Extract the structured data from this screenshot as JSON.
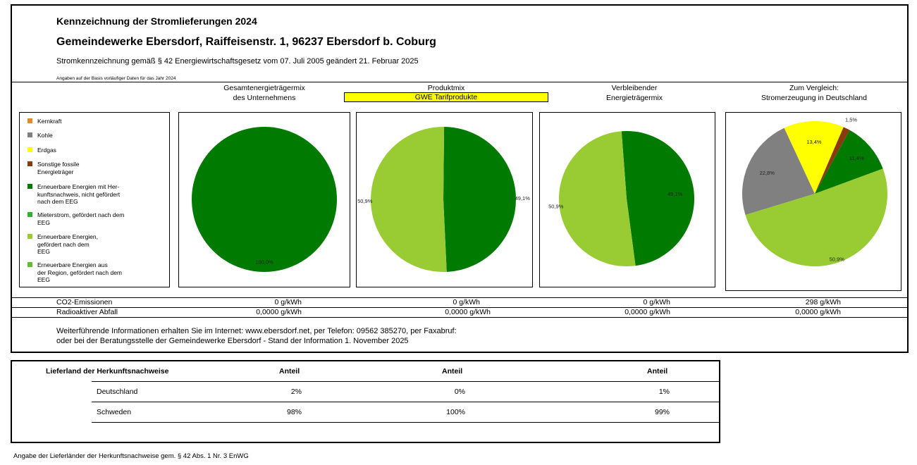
{
  "header": {
    "title": "Kennzeichnung der Stromlieferungen 2024",
    "company": "Gemeindewerke Ebersdorf, Raiffeisenstr. 1, 96237 Ebersdorf b. Coburg",
    "legal": "Stromkennzeichnung gemäß § 42 Energiewirtschaftsgesetz vom 07. Juli 2005 geändert 21. Februar 2025",
    "note": "Angaben auf der Basis vorläufiger Daten für das Jahr 2024"
  },
  "columns": {
    "c1": "Gesamtenergieträgermix\ndes Unternehmens",
    "c2": "Produktmix",
    "c2_sub": "GWE Tarifprodukte",
    "c3": "Verbleibender\nEnergieträgermix",
    "c4": "Zum Vergleich:\nStromerzeugung in Deutschland"
  },
  "legend": [
    {
      "label": "Kernkraft",
      "color": "#e08a2a"
    },
    {
      "label": "Kohle",
      "color": "#808080"
    },
    {
      "label": "Erdgas",
      "color": "#ffff00"
    },
    {
      "label": "Sonstige fossile\nEnergieträger",
      "color": "#8b3a10"
    },
    {
      "label": "Erneuerbare Energien mit Her-\nkunftsnachweis, nicht gefördert\nnach dem EEG",
      "color": "#007a00"
    },
    {
      "label": "Mieterstrom, gefördert nach dem\nEEG",
      "color": "#2db52d"
    },
    {
      "label": "Erneuerbare Energien,\ngefördert nach dem\nEEG",
      "color": "#99cc33"
    },
    {
      "label": "Erneuerbare Energien aus\nder Region, gefördert nach dem\nEEG",
      "color": "#66bb33"
    }
  ],
  "chart_data": [
    {
      "type": "pie",
      "name": "Gesamtenergieträgermix des Unternehmens",
      "slices": [
        {
          "label": "Erneuerbare Energien mit Herkunftsnachweis, nicht gefördert nach dem EEG",
          "value": 100.0,
          "text": "100,0%",
          "color": "#007a00"
        }
      ]
    },
    {
      "type": "pie",
      "name": "Produktmix",
      "slices": [
        {
          "label": "Erneuerbare Energien mit Herkunftsnachweis, nicht gefördert nach dem EEG",
          "value": 49.1,
          "text": "49,1%",
          "color": "#007a00"
        },
        {
          "label": "Erneuerbare Energien, gefördert nach dem EEG",
          "value": 50.9,
          "text": "50,9%",
          "color": "#99cc33"
        }
      ]
    },
    {
      "type": "pie",
      "name": "Verbleibender Energieträgermix",
      "slices": [
        {
          "label": "Erneuerbare Energien mit Herkunftsnachweis, nicht gefördert nach dem EEG",
          "value": 49.1,
          "text": "49,1%",
          "color": "#007a00"
        },
        {
          "label": "Erneuerbare Energien, gefördert nach dem EEG",
          "value": 50.9,
          "text": "50,9%",
          "color": "#99cc33"
        }
      ]
    },
    {
      "type": "pie",
      "name": "Stromerzeugung in Deutschland",
      "slices": [
        {
          "label": "Kohle",
          "value": 22.8,
          "text": "22,8%",
          "color": "#808080"
        },
        {
          "label": "Erdgas",
          "value": 13.4,
          "text": "13,4%",
          "color": "#ffff00"
        },
        {
          "label": "Sonstige fossile Energieträger",
          "value": 1.5,
          "text": "1,5%",
          "color": "#8b3a10"
        },
        {
          "label": "Erneuerbare Energien mit Herkunftsnachweis, nicht gefördert nach dem EEG",
          "value": 11.4,
          "text": "11,4%",
          "color": "#007a00"
        },
        {
          "label": "Erneuerbare Energien, gefördert nach dem EEG",
          "value": 50.9,
          "text": "50,9%",
          "color": "#99cc33"
        }
      ]
    }
  ],
  "emissions": {
    "co2_label": "CO2-Emissionen",
    "waste_label": "Radioaktiver Abfall",
    "co2": [
      "0 g/kWh",
      "0 g/kWh",
      "0 g/kWh",
      "298 g/kWh"
    ],
    "waste": [
      "0,0000 g/kWh",
      "0,0000 g/kWh",
      "0,0000 g/kWh",
      "0,0000 g/kWh"
    ]
  },
  "info": {
    "line1": "Weiterführende Informationen erhalten Sie im Internet: www.ebersdorf.net, per Telefon: 09562 385270, per Faxabruf:",
    "line2": "oder bei der Beratungsstelle der Gemeindewerke Ebersdorf - Stand der Information 1. November 2025"
  },
  "origin_table": {
    "head": "Lieferland der Herkunftsnachweise",
    "cols": [
      "Anteil",
      "Anteil",
      "Anteil"
    ],
    "rows": [
      {
        "country": "Deutschland",
        "values": [
          "2%",
          "0%",
          "1%"
        ]
      },
      {
        "country": "Schweden",
        "values": [
          "98%",
          "100%",
          "99%"
        ]
      }
    ]
  },
  "footnote": "Angabe der Lieferländer der Herkunftsnachweise gem. § 42 Abs. 1 Nr. 3 EnWG"
}
